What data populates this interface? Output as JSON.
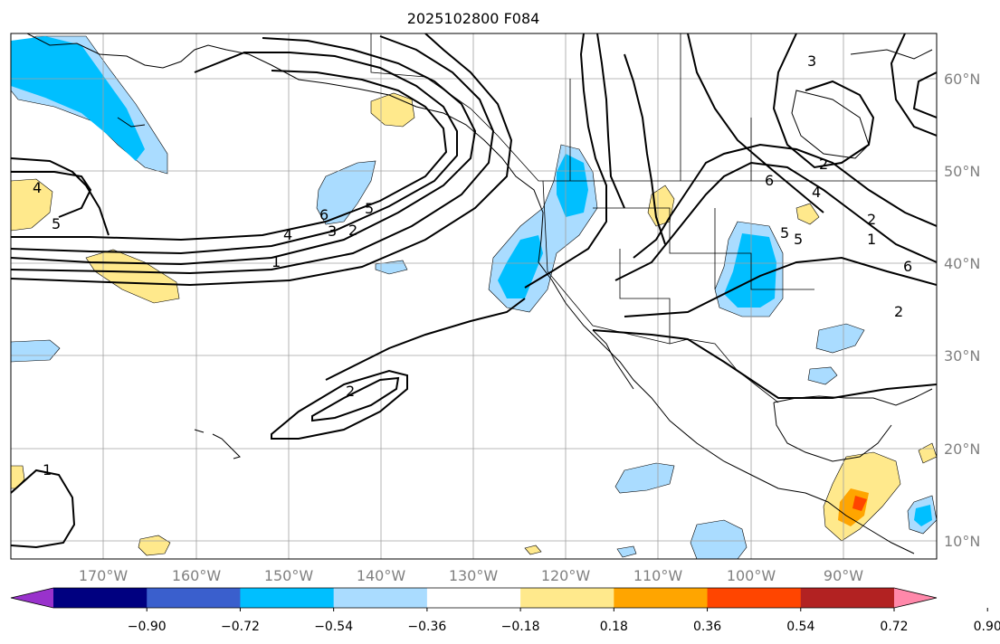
{
  "title": "2025102800 F084",
  "lon_labels": [
    "170°W",
    "160°W",
    "150°W",
    "140°W",
    "130°W",
    "120°W",
    "110°W",
    "100°W",
    "90°W"
  ],
  "lat_labels": [
    "60°N",
    "50°N",
    "40°N",
    "30°N",
    "20°N",
    "10°N"
  ],
  "colorbar": {
    "colors": [
      "#9932cc",
      "#000080",
      "#3a5fcd",
      "#00bfff",
      "#aadcff",
      "#ffffff",
      "#ffe98c",
      "#ffa500",
      "#ff4500",
      "#b22222",
      "#ff88aa"
    ],
    "tick_labels": [
      "−0.90",
      "−0.72",
      "−0.54",
      "−0.36",
      "−0.18",
      "0.18",
      "0.36",
      "0.54",
      "0.72",
      "0.90"
    ]
  },
  "contour_labels": [
    "1",
    "4",
    "5",
    "6",
    "5",
    "4",
    "3",
    "2",
    "1",
    "2",
    "2",
    "5",
    "6",
    "2",
    "6",
    "3",
    "4",
    "2",
    "1",
    "5"
  ]
}
